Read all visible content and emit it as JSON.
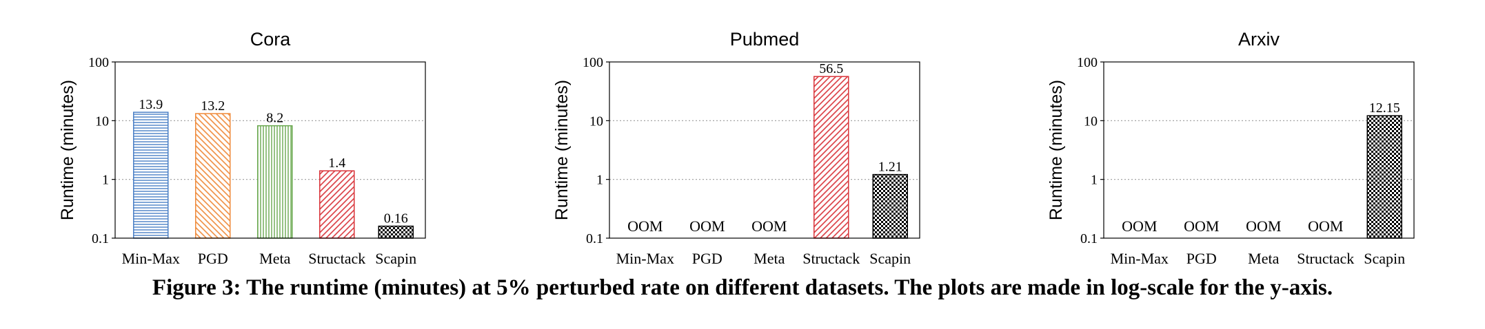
{
  "caption": "Figure 3: The runtime (minutes) at 5% perturbed rate on different datasets. The plots are made in log-scale for the y-axis.",
  "patterns": [
    {
      "id": "pat-minmax",
      "color": "#4a7fc6",
      "style": "horizontal-lines"
    },
    {
      "id": "pat-pgd",
      "color": "#ef8a3a",
      "style": "diagonal-back"
    },
    {
      "id": "pat-meta",
      "color": "#6aa84f",
      "style": "vertical-lines"
    },
    {
      "id": "pat-structack",
      "color": "#d9343a",
      "style": "diagonal-forward"
    },
    {
      "id": "pat-scapin",
      "color": "#000000",
      "style": "checkerboard"
    }
  ],
  "chart_data": [
    {
      "type": "bar",
      "title": "Cora",
      "ylabel": "Runtime (minutes)",
      "yscale": "log",
      "ylim": [
        0.1,
        100
      ],
      "yticks": [
        "0.1",
        "1",
        "10",
        "100"
      ],
      "grid": "horizontal-dotted",
      "categories": [
        "Min-Max",
        "PGD",
        "Meta",
        "Structack",
        "Scapin"
      ],
      "values": [
        13.9,
        13.2,
        8.2,
        1.4,
        0.16
      ],
      "labels": [
        "13.9",
        "13.2",
        "8.2",
        "1.4",
        "0.16"
      ]
    },
    {
      "type": "bar",
      "title": "Pubmed",
      "ylabel": "Runtime (minutes)",
      "yscale": "log",
      "ylim": [
        0.1,
        100
      ],
      "yticks": [
        "0.1",
        "1",
        "10",
        "100"
      ],
      "grid": "horizontal-dotted",
      "categories": [
        "Min-Max",
        "PGD",
        "Meta",
        "Structack",
        "Scapin"
      ],
      "values": [
        null,
        null,
        null,
        56.5,
        1.21
      ],
      "labels": [
        "OOM",
        "OOM",
        "OOM",
        "56.5",
        "1.21"
      ]
    },
    {
      "type": "bar",
      "title": "Arxiv",
      "ylabel": "Runtime (minutes)",
      "yscale": "log",
      "ylim": [
        0.1,
        100
      ],
      "yticks": [
        "0.1",
        "1",
        "10",
        "100"
      ],
      "grid": "horizontal-dotted",
      "categories": [
        "Min-Max",
        "PGD",
        "Meta",
        "Structack",
        "Scapin"
      ],
      "values": [
        null,
        null,
        null,
        null,
        12.15
      ],
      "labels": [
        "OOM",
        "OOM",
        "OOM",
        "OOM",
        "12.15"
      ]
    }
  ]
}
